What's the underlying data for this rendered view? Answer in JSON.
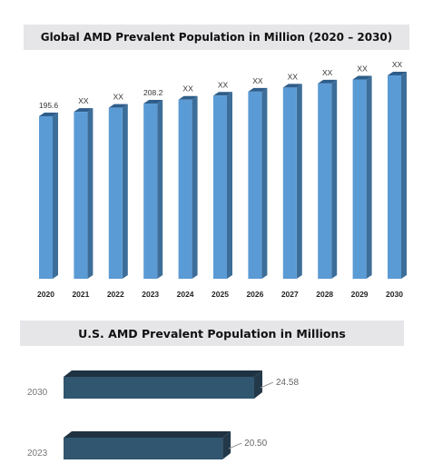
{
  "chart_data": [
    {
      "type": "bar",
      "title": "Global AMD Prevalent Population in Million (2020 – 2030)",
      "categories": [
        "2020",
        "2021",
        "2022",
        "2023",
        "2024",
        "2025",
        "2026",
        "2027",
        "2028",
        "2029",
        "2030"
      ],
      "values": [
        195.6,
        200,
        204,
        208.2,
        212,
        216,
        220,
        224,
        228,
        232,
        236
      ],
      "data_labels": [
        "195.6",
        "XX",
        "XX",
        "208.2",
        "XX",
        "XX",
        "XX",
        "XX",
        "XX",
        "XX",
        "XX"
      ],
      "bar_color": "#5b9bd5",
      "bar_side_color": "#3d6e99",
      "bar_top_color": "#2f5d8a"
    },
    {
      "type": "bar",
      "orientation": "horizontal",
      "title": "U.S. AMD Prevalent Population in Millions",
      "categories": [
        "2030",
        "2023"
      ],
      "values": [
        24.58,
        20.5
      ],
      "data_labels": [
        "24.58",
        "20.50"
      ],
      "bar_color": "#31566f",
      "bar_side_color": "#23394a",
      "bar_top_color": "#1f3241"
    }
  ]
}
